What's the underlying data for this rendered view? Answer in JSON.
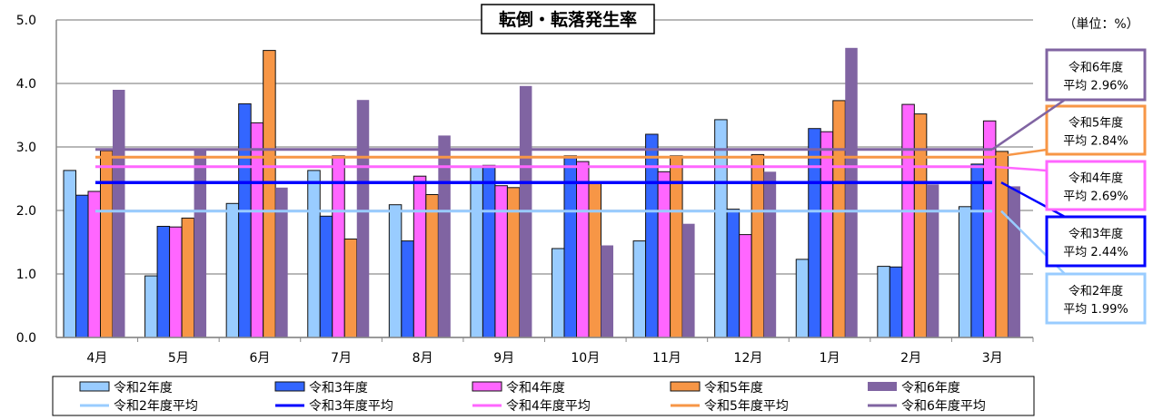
{
  "chart_data": {
    "type": "bar",
    "title": "転倒・転落発生率",
    "unit_label": "（単位：%）",
    "ylim": [
      0,
      5
    ],
    "yticks": [
      "0.0",
      "1.0",
      "2.0",
      "3.0",
      "4.0",
      "5.0"
    ],
    "grid": true,
    "legend_position": "bottom",
    "categories": [
      "4月",
      "5月",
      "6月",
      "7月",
      "8月",
      "9月",
      "10月",
      "11月",
      "12月",
      "1月",
      "2月",
      "3月"
    ],
    "series": [
      {
        "name": "令和2年度",
        "color": "#99CCFF",
        "values": [
          2.63,
          0.97,
          2.11,
          2.63,
          2.09,
          2.69,
          1.4,
          1.52,
          3.43,
          1.23,
          1.12,
          2.06
        ]
      },
      {
        "name": "令和3年度",
        "color": "#3366FF",
        "values": [
          2.24,
          1.75,
          3.68,
          1.91,
          1.52,
          2.71,
          2.86,
          3.2,
          2.02,
          3.29,
          1.11,
          2.73
        ]
      },
      {
        "name": "令和4年度",
        "color": "#FF66FF",
        "values": [
          2.3,
          1.74,
          3.38,
          2.86,
          2.54,
          2.39,
          2.77,
          2.61,
          1.62,
          3.24,
          3.67,
          3.41
        ]
      },
      {
        "name": "令和5年度",
        "color": "#F79646",
        "values": [
          2.94,
          1.88,
          4.52,
          1.55,
          2.25,
          2.36,
          2.43,
          2.86,
          2.88,
          3.73,
          3.52,
          2.93
        ]
      },
      {
        "name": "令和6年度",
        "color": "#8064A2",
        "values": [
          3.9,
          2.96,
          2.36,
          3.74,
          3.18,
          3.96,
          1.45,
          1.79,
          2.61,
          4.56,
          2.41,
          2.38
        ]
      }
    ],
    "averages": [
      {
        "name": "令和2年度平均",
        "color": "#99CCFF",
        "value": 1.99,
        "callout_title": "令和2年度",
        "callout_value": "平均 1.99%"
      },
      {
        "name": "令和3年度平均",
        "color": "#0000FF",
        "value": 2.44,
        "callout_title": "令和3年度",
        "callout_value": "平均 2.44%"
      },
      {
        "name": "令和4年度平均",
        "color": "#FF66FF",
        "value": 2.69,
        "callout_title": "令和4年度",
        "callout_value": "平均 2.69%"
      },
      {
        "name": "令和5年度平均",
        "color": "#F79646",
        "value": 2.84,
        "callout_title": "令和5年度",
        "callout_value": "平均 2.84%"
      },
      {
        "name": "令和6年度平均",
        "color": "#8064A2",
        "value": 2.96,
        "callout_title": "令和6年度",
        "callout_value": "平均 2.96%"
      }
    ]
  }
}
